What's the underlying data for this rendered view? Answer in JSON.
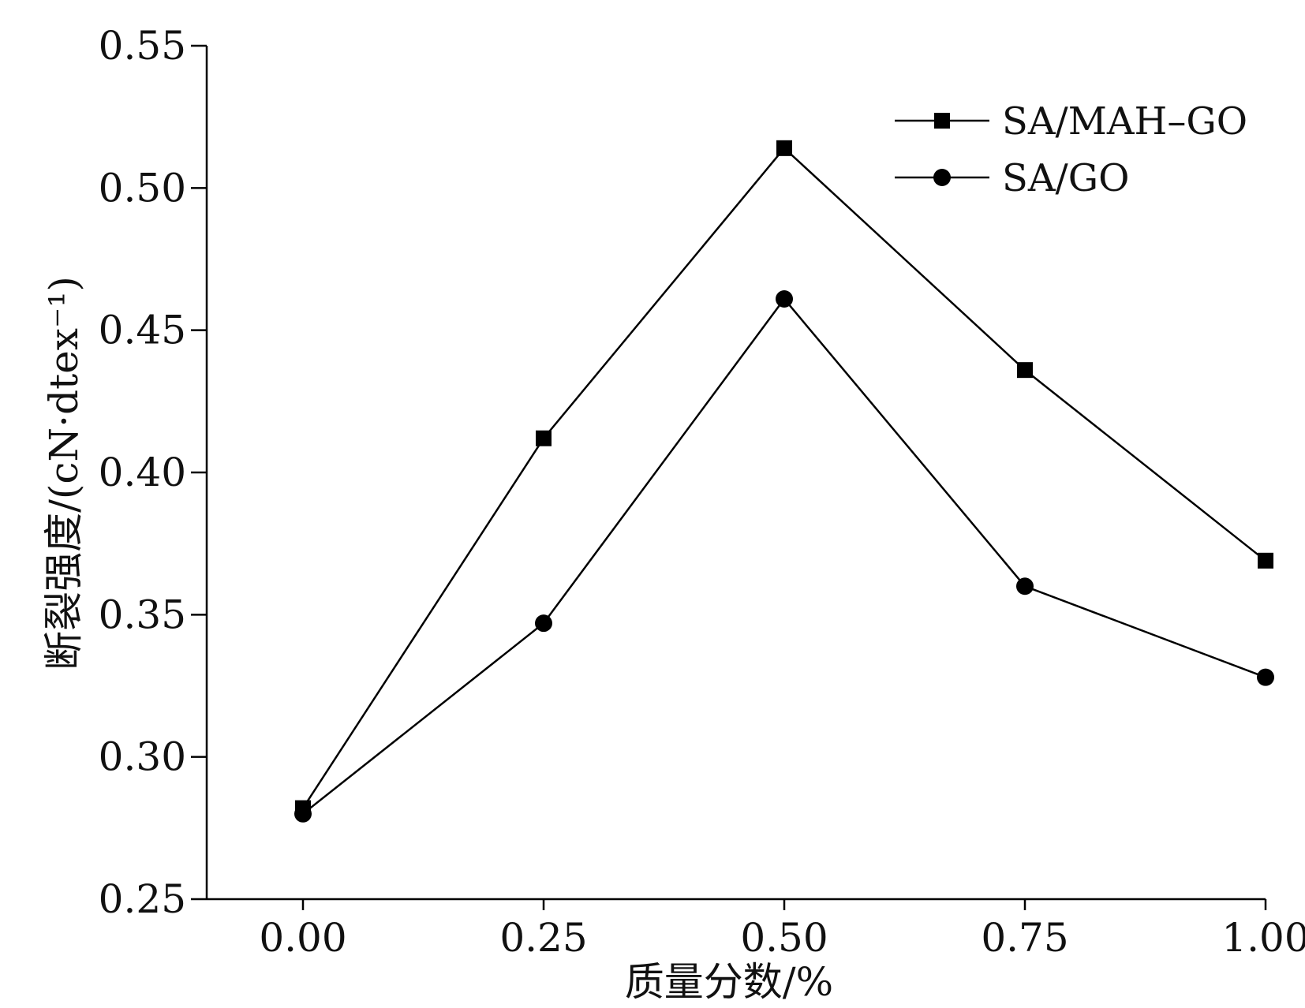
{
  "chart_data": {
    "type": "line",
    "title": "",
    "xlabel": "质量分数/%",
    "ylabel": "断裂强度/(cN·dtex⁻¹)",
    "xlim": [
      -0.1,
      1.0
    ],
    "ylim": [
      0.25,
      0.55
    ],
    "x_ticks": [
      0.0,
      0.25,
      0.5,
      0.75,
      1.0
    ],
    "x_tick_labels": [
      "0.00",
      "0.25",
      "0.50",
      "0.75",
      "1.00"
    ],
    "y_ticks": [
      0.25,
      0.3,
      0.35,
      0.4,
      0.45,
      0.5,
      0.55
    ],
    "y_tick_labels": [
      "0.25",
      "0.30",
      "0.35",
      "0.40",
      "0.45",
      "0.50",
      "0.55"
    ],
    "grid": false,
    "legend_position": "top-right",
    "x": [
      0.0,
      0.25,
      0.5,
      0.75,
      1.0
    ],
    "series": [
      {
        "name": "SA/MAH–GO",
        "marker": "square",
        "color": "#000000",
        "values": [
          0.282,
          0.412,
          0.514,
          0.436,
          0.369
        ]
      },
      {
        "name": "SA/GO",
        "marker": "circle",
        "color": "#000000",
        "values": [
          0.28,
          0.347,
          0.461,
          0.36,
          0.328
        ]
      }
    ]
  }
}
